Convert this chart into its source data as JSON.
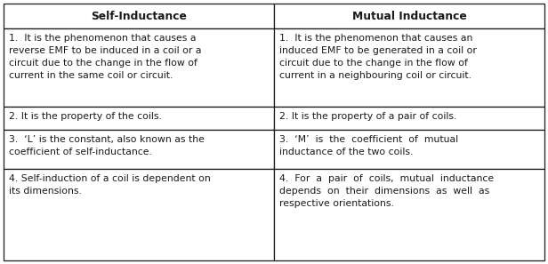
{
  "header_left": "Self-Inductance",
  "header_right": "Mutual Inductance",
  "rows_left": [
    "1.  It is the phenomenon that causes a\nreverse EMF to be induced in a coil or a\ncircuit due to the change in the flow of\ncurrent in the same coil or circuit.",
    "2. It is the property of the coils.",
    "3.  ‘L’ is the constant, also known as the\ncoefficient of self-inductance.",
    "4. Self-induction of a coil is dependent on\nits dimensions."
  ],
  "rows_right": [
    "1.  It is the phenomenon that causes an\ninduced EMF to be generated in a coil or\ncircuit due to the change in the flow of\ncurrent in a neighbouring coil or circuit.",
    "2. It is the property of a pair of coils.",
    "3.  ‘M’  is  the  coefficient  of  mutual\ninductance of the two coils.",
    "4.  For  a  pair  of  coils,  mutual  inductance\ndepends  on  their  dimensions  as  well  as\nrespective orientations."
  ],
  "bg_color": "#ffffff",
  "border_color": "#1a1a1a",
  "text_color": "#1a1a1a",
  "font_size": 7.8,
  "header_font_size": 8.8,
  "fig_width": 6.16,
  "fig_height": 2.97,
  "dpi": 100
}
